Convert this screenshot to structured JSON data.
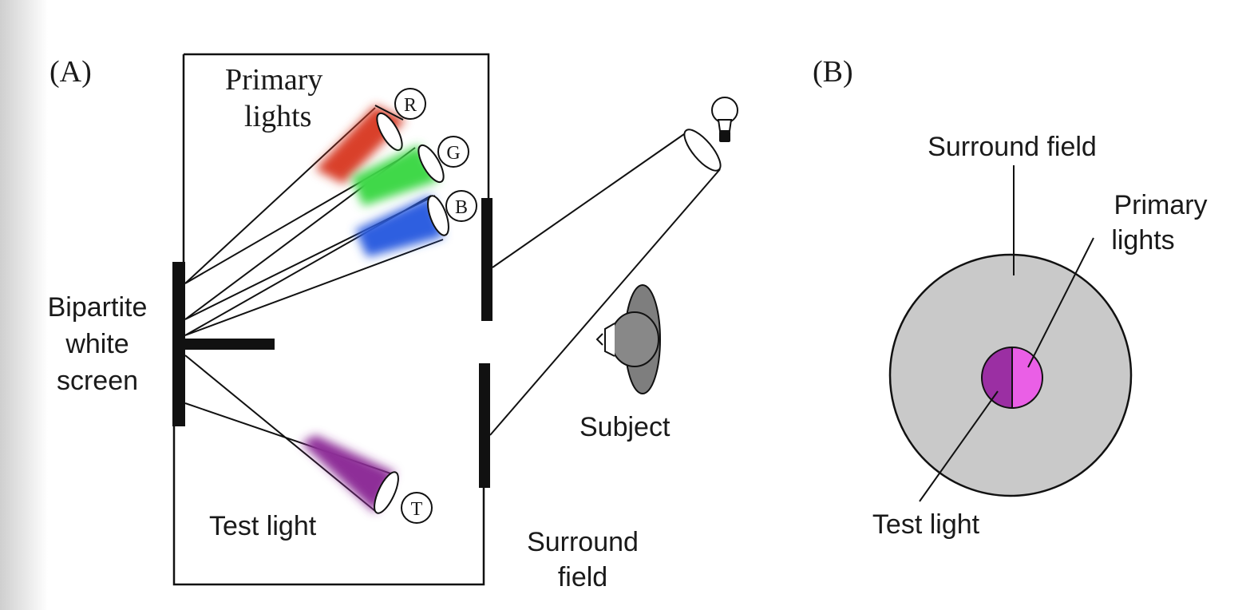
{
  "panel_a": {
    "label": "(A)",
    "primary_lights_label_line1": "Primary",
    "primary_lights_label_line2": "lights",
    "screen_label_line1": "Bipartite",
    "screen_label_line2": "white",
    "screen_label_line3": "screen",
    "test_light_label": "Test light",
    "subject_label": "Subject",
    "surround_label_line1": "Surround",
    "surround_label_line2": "field",
    "badges": {
      "r": "R",
      "g": "G",
      "b": "B",
      "t": "T"
    }
  },
  "panel_b": {
    "label": "(B)",
    "surround_label": "Surround field",
    "primary_label_line1": "Primary",
    "primary_label_line2": "lights",
    "test_label": "Test light"
  },
  "colors": {
    "red_light": "#d9412c",
    "green_light": "#3fd84a",
    "blue_light": "#2f5ee0",
    "test_light": "#8e2f98",
    "test_half": "#9b2fa3",
    "primary_half": "#ea5fe6",
    "surround_disc": "#c9c9c9"
  }
}
